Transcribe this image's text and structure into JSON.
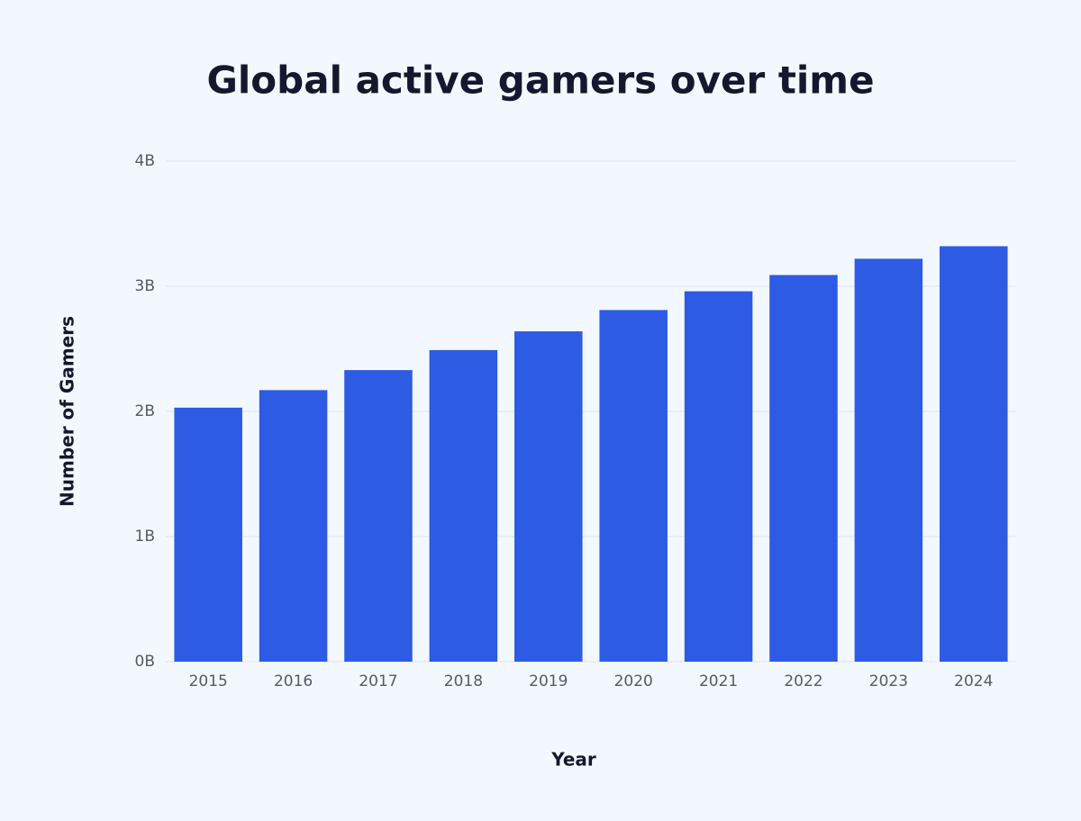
{
  "chart_data": {
    "type": "bar",
    "title": "Global active gamers over time",
    "x_label": "Year",
    "y_label": "Number of Gamers",
    "categories": [
      "2015",
      "2016",
      "2017",
      "2018",
      "2019",
      "2020",
      "2021",
      "2022",
      "2023",
      "2024"
    ],
    "values": [
      2.03,
      2.17,
      2.33,
      2.49,
      2.64,
      2.81,
      2.96,
      3.09,
      3.22,
      3.32
    ],
    "color": "#2d5be3",
    "ylim": [
      0,
      4
    ],
    "yticks": [
      {
        "value": 0,
        "label": "0B"
      },
      {
        "value": 1,
        "label": "1B"
      },
      {
        "value": 2,
        "label": "2B"
      },
      {
        "value": 3,
        "label": "3B"
      },
      {
        "value": 4,
        "label": "4B"
      }
    ],
    "grid": true
  }
}
